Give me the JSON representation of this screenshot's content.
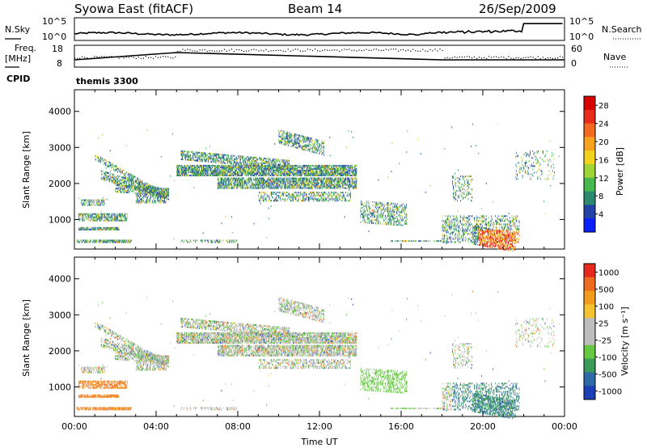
{
  "header": {
    "title": "Syowa East (fitACF)",
    "beam": "Beam 14",
    "date": "26/Sep/2009"
  },
  "noise_panel": {
    "left_label": "N.Sky",
    "right_label": "N.Search",
    "left_ticks": [
      "10^5",
      "10^0"
    ],
    "right_ticks": [
      "10^5",
      "10^0"
    ]
  },
  "freq_panel": {
    "left_label_top": "Freq.",
    "left_label_bottom": "[MHz]",
    "right_label": "Nave",
    "left_ticks": [
      "18",
      "8"
    ],
    "right_ticks": [
      "60",
      "0"
    ],
    "cpid_label": "CPID",
    "cpid_value": "themis 3300"
  },
  "colors": {
    "power": [
      "#0a1fff",
      "#2143a6",
      "#2a8a6e",
      "#47b84d",
      "#9ed433",
      "#f2d21a",
      "#f7a21f",
      "#f26a1f",
      "#e82a18",
      "#d90000"
    ],
    "velocity_pos": [
      "#1d3fb8",
      "#2e6aa8",
      "#3a9a5a",
      "#64c840",
      "#bdbdbd"
    ],
    "velocity_neg": [
      "#bdbdbd",
      "#f5c330",
      "#f39c1c",
      "#ee6a1f",
      "#e52a1c"
    ]
  },
  "chart_data": [
    {
      "type": "heatmap",
      "name": "power",
      "ylabel": "Slant Range [km]",
      "ylim": [
        180,
        4600
      ],
      "yticks": [
        "1000",
        "2000",
        "3000",
        "4000"
      ],
      "xlim_hours": [
        0,
        24
      ],
      "xticks": [
        "00:00",
        "04:00",
        "08:00",
        "12:00",
        "16:00",
        "20:00",
        "00:00"
      ],
      "colorbar_label": "Power [dB]",
      "colorbar_ticks": [
        "4",
        "8",
        "12",
        "16",
        "20",
        "24",
        "28"
      ],
      "colorbar_range": [
        0,
        30
      ]
    },
    {
      "type": "heatmap",
      "name": "velocity",
      "ylabel": "Slant Range [km]",
      "xlabel": "Time UT",
      "ylim": [
        180,
        4600
      ],
      "yticks": [
        "1000",
        "2000",
        "3000",
        "4000"
      ],
      "xlim_hours": [
        0,
        24
      ],
      "xticks": [
        "00:00",
        "04:00",
        "08:00",
        "12:00",
        "16:00",
        "20:00",
        "00:00"
      ],
      "colorbar_label": "Velocity [m s⁻¹]",
      "colorbar_ticks": [
        "1000",
        "500",
        "100",
        "25",
        "-25",
        "-100",
        "-500",
        "-1000"
      ]
    }
  ]
}
